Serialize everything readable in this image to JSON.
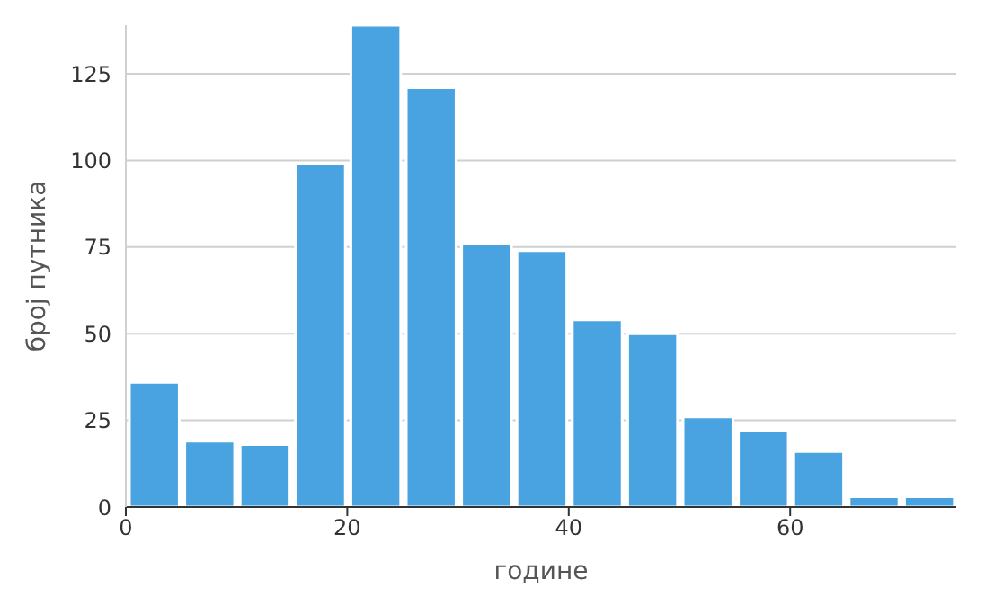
{
  "chart_data": {
    "type": "histogram",
    "xlabel": "године",
    "ylabel": "број путника",
    "bins": [
      0,
      5,
      10,
      15,
      20,
      25,
      30,
      35,
      40,
      45,
      50,
      55,
      60,
      65,
      70,
      75
    ],
    "values": [
      36,
      19,
      18,
      99,
      139,
      121,
      76,
      74,
      54,
      50,
      26,
      22,
      16,
      3,
      3
    ],
    "color": "#48a3e0",
    "xlim": [
      0,
      75
    ],
    "xticks": [
      0,
      20,
      40,
      60
    ],
    "ylim": [
      0,
      139
    ],
    "yticks": [
      0,
      25,
      50,
      75,
      100,
      125
    ],
    "grid": "y"
  }
}
